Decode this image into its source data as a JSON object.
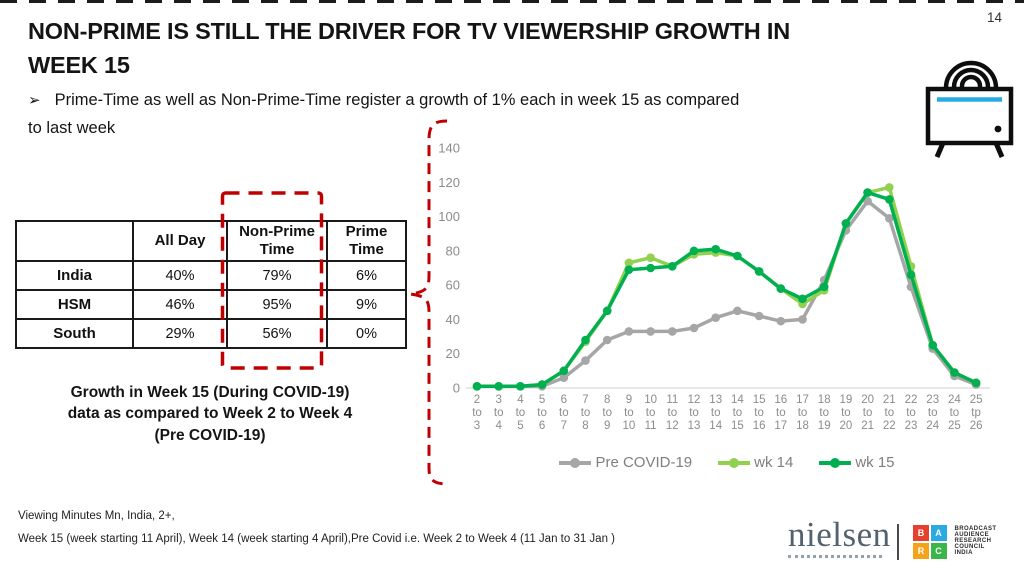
{
  "page_number": "14",
  "header": {
    "title_lines": [
      "NON-PRIME IS STILL THE DRIVER FOR TV VIEWERSHIP GROWTH IN",
      "WEEK 15"
    ],
    "bullet_marker": "➢",
    "bullet_lines": [
      "Prime-Time as well as Non-Prime-Time register a growth of 1% each in week 15 as compared",
      "to last week"
    ]
  },
  "growth_table": {
    "headers": [
      "",
      "All Day",
      "Non-Prime Time",
      "Prime Time"
    ],
    "rows": [
      [
        "India",
        "40%",
        "79%",
        "6%"
      ],
      [
        "HSM",
        "46%",
        "95%",
        "9%"
      ],
      [
        "South",
        "29%",
        "56%",
        "0%"
      ]
    ],
    "caption_lines": [
      "Growth in Week 15 (During COVID-19)",
      "data as compared to Week 2 to Week 4",
      "(Pre COVID-19)"
    ]
  },
  "chart_data": {
    "type": "line",
    "title": "",
    "xlabel": "",
    "ylabel": "",
    "categories": [
      "2 to 3",
      "3 to 4",
      "4 to 5",
      "5 to 6",
      "6 to 7",
      "7 to 8",
      "8 to 9",
      "9 to 10",
      "10 to 11",
      "11 to 12",
      "12 to 13",
      "13 to 14",
      "14 to 15",
      "15 to 16",
      "16 to 17",
      "17 to 18",
      "18 to 19",
      "19 to 20",
      "20 to 21",
      "21 to 22",
      "22 to 23",
      "23 to 24",
      "24 to 25",
      "25 tp 26"
    ],
    "series": [
      {
        "name": "Pre COVID-19",
        "color": "#a6a6a6",
        "values": [
          1,
          1,
          1,
          1,
          6,
          16,
          28,
          33,
          33,
          33,
          35,
          41,
          45,
          42,
          39,
          40,
          63,
          92,
          109,
          99,
          59,
          23,
          7,
          2
        ]
      },
      {
        "name": "wk 14",
        "color": "#92d050",
        "values": [
          1,
          1,
          1,
          2,
          10,
          27,
          45,
          73,
          76,
          71,
          78,
          79,
          77,
          68,
          58,
          49,
          57,
          96,
          114,
          117,
          71,
          25,
          9,
          3
        ]
      },
      {
        "name": "wk 15",
        "color": "#00b050",
        "values": [
          1,
          1,
          1,
          2,
          10,
          28,
          45,
          69,
          70,
          71,
          80,
          81,
          77,
          68,
          58,
          52,
          59,
          96,
          114,
          110,
          66,
          25,
          9,
          3
        ]
      }
    ],
    "ylim": [
      0,
      150
    ],
    "yticks": [
      0,
      20,
      40,
      60,
      80,
      100,
      120,
      140
    ],
    "grid": false,
    "legend_position": "bottom"
  },
  "annotations": {
    "highlight_color": "#c00000"
  },
  "footer": {
    "line1": "Viewing Minutes Mn, India, 2+,",
    "line2": "Week 15 (week starting 11 April), Week 14 (week starting 4 April),Pre Covid i.e. Week 2 to Week 4 (11 Jan to 31 Jan )"
  },
  "logos": {
    "nielsen": "nielsen",
    "barc": {
      "squares": [
        {
          "letter": "B",
          "color": "#e8402f"
        },
        {
          "letter": "A",
          "color": "#29aae1"
        },
        {
          "letter": "R",
          "color": "#f5a31b"
        },
        {
          "letter": "C",
          "color": "#3cb64a"
        }
      ],
      "lines": [
        "BROADCAST",
        "AUDIENCE",
        "RESEARCH",
        "COUNCIL",
        "INDIA"
      ]
    }
  }
}
